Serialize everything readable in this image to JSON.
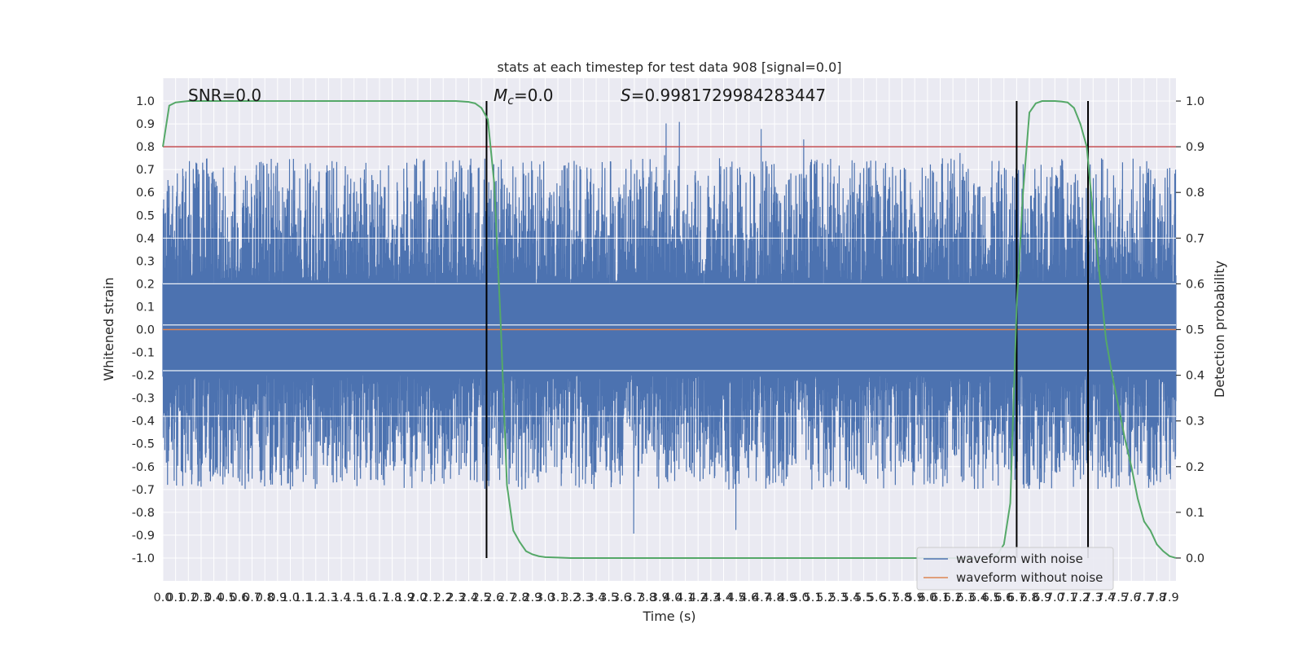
{
  "chart_data": {
    "type": "line",
    "title": "stats at each timestep for test data 908 [signal=0.0]",
    "xlabel": "Time (s)",
    "ylabel": "Whitened strain",
    "y2label": "Detection probability",
    "xlim": [
      0.0,
      7.95
    ],
    "ylim": [
      -1.1,
      1.1
    ],
    "y2lim": [
      -0.05,
      1.05
    ],
    "xticks": [
      "0.0",
      "0.1",
      "0.2",
      "0.3",
      "0.4",
      "0.5",
      "0.6",
      "0.7",
      "0.8",
      "0.9",
      "1.0",
      "1.1",
      "1.2",
      "1.3",
      "1.4",
      "1.5",
      "1.6",
      "1.7",
      "1.8",
      "1.9",
      "2.0",
      "2.1",
      "2.2",
      "2.3",
      "2.4",
      "2.5",
      "2.6",
      "2.7",
      "2.8",
      "2.9",
      "3.0",
      "3.1",
      "3.2",
      "3.3",
      "3.4",
      "3.5",
      "3.6",
      "3.7",
      "3.8",
      "3.9",
      "4.0",
      "4.1",
      "4.2",
      "4.3",
      "4.4",
      "4.5",
      "4.6",
      "4.7",
      "4.8",
      "4.9",
      "5.0",
      "5.1",
      "5.2",
      "5.3",
      "5.4",
      "5.5",
      "5.6",
      "5.7",
      "5.8",
      "5.9",
      "6.0",
      "6.1",
      "6.2",
      "6.3",
      "6.4",
      "6.5",
      "6.6",
      "6.7",
      "6.8",
      "6.9",
      "7.0",
      "7.1",
      "7.2",
      "7.3",
      "7.4",
      "7.5",
      "7.6",
      "7.7",
      "7.8",
      "7.9"
    ],
    "yticks": [
      "1.0",
      "0.9",
      "0.8",
      "0.7",
      "0.6",
      "0.5",
      "0.4",
      "0.3",
      "0.2",
      "0.1",
      "0.0",
      "-0.1",
      "-0.2",
      "-0.3",
      "-0.4",
      "-0.5",
      "-0.6",
      "-0.7",
      "-0.8",
      "-0.9",
      "-1.0"
    ],
    "y2ticks": [
      "1.0",
      "0.9",
      "0.8",
      "0.7",
      "0.6",
      "0.5",
      "0.4",
      "0.3",
      "0.2",
      "0.1",
      "0.0"
    ],
    "grid": true,
    "legend_position": "lower-right",
    "annotations": {
      "snr": "SNR=0.0",
      "mc_symbol": "M",
      "mc_sub": "c",
      "mc_value": "=0.0",
      "s_symbol": "S",
      "s_value": "=0.9981729984283447"
    },
    "threshold": 0.9,
    "markers_x": [
      2.54,
      6.7,
      7.26
    ],
    "series": [
      {
        "name": "waveform with noise",
        "color": "#4c72b0",
        "envelope_max": 1.0,
        "envelope_min": -0.93
      },
      {
        "name": "waveform without noise",
        "color": "#dd8452",
        "values": [
          0.0,
          0.0
        ]
      },
      {
        "color": "#55a868",
        "x": [
          0.0,
          0.05,
          0.1,
          0.2,
          0.5,
          1.0,
          1.5,
          2.0,
          2.3,
          2.4,
          2.45,
          2.5,
          2.55,
          2.6,
          2.65,
          2.7,
          2.75,
          2.8,
          2.85,
          2.9,
          2.95,
          3.0,
          3.1,
          3.2,
          4.0,
          5.0,
          6.0,
          6.4,
          6.5,
          6.55,
          6.6,
          6.65,
          6.7,
          6.75,
          6.8,
          6.85,
          6.9,
          6.95,
          7.0,
          7.05,
          7.1,
          7.15,
          7.2,
          7.25,
          7.3,
          7.35,
          7.4,
          7.45,
          7.5,
          7.55,
          7.6,
          7.65,
          7.7,
          7.75,
          7.8,
          7.85,
          7.9,
          7.95
        ],
        "values": [
          0.9,
          0.99,
          0.997,
          1.0,
          1.0,
          1.0,
          1.0,
          1.0,
          1.0,
          0.998,
          0.995,
          0.985,
          0.96,
          0.82,
          0.52,
          0.16,
          0.06,
          0.035,
          0.015,
          0.008,
          0.004,
          0.002,
          0.001,
          0.0,
          0.0,
          0.0,
          0.0,
          0.0,
          0.002,
          0.008,
          0.03,
          0.12,
          0.55,
          0.8,
          0.975,
          0.995,
          1.0,
          1.0,
          1.0,
          0.999,
          0.997,
          0.985,
          0.95,
          0.9,
          0.75,
          0.62,
          0.48,
          0.4,
          0.33,
          0.26,
          0.2,
          0.13,
          0.08,
          0.06,
          0.03,
          0.015,
          0.004,
          0.0
        ]
      }
    ]
  }
}
